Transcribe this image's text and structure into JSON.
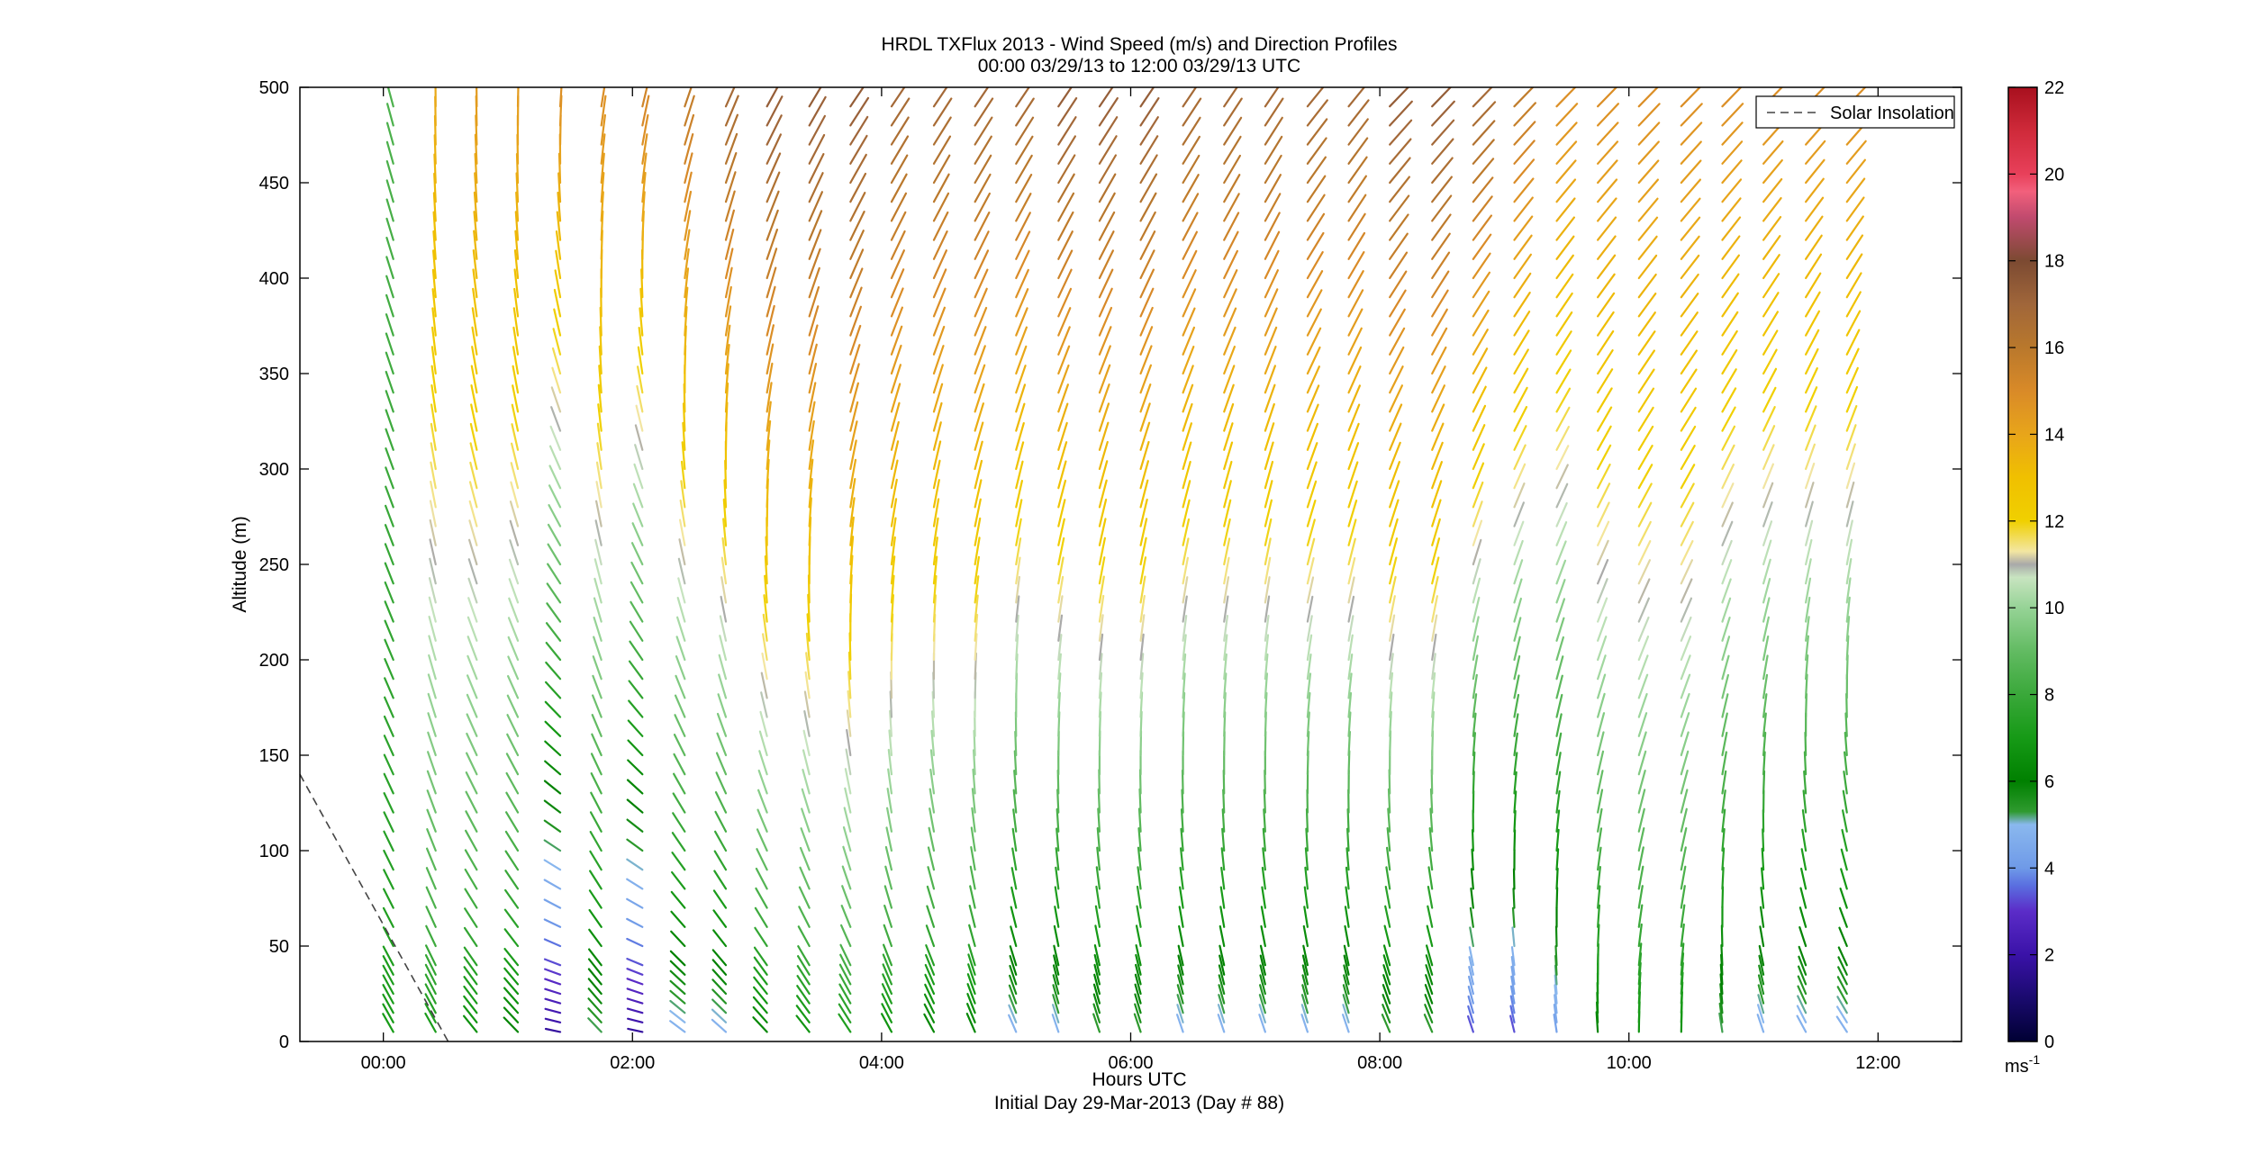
{
  "chart_data": {
    "type": "wind_barb_profile",
    "title": "HRDL TXFlux 2013 - Wind Speed (m/s) and Direction Profiles",
    "subtitle": "00:00 03/29/13 to 12:00 03/29/13  UTC",
    "xlabel": "Hours UTC",
    "xlabel_sub": "Initial Day 29-Mar-2013 (Day # 88)",
    "ylabel": "Altitude (m)",
    "xlim": [
      -0.67,
      12.67
    ],
    "ylim": [
      0,
      500
    ],
    "x_ticks": [
      0,
      2,
      4,
      6,
      8,
      10,
      12
    ],
    "x_tick_labels": [
      "00:00",
      "02:00",
      "04:00",
      "06:00",
      "08:00",
      "10:00",
      "12:00"
    ],
    "y_ticks": [
      0,
      50,
      100,
      150,
      200,
      250,
      300,
      350,
      400,
      450,
      500
    ],
    "y_tick_labels": [
      "0",
      "50",
      "100",
      "150",
      "200",
      "250",
      "300",
      "350",
      "400",
      "450",
      "500"
    ],
    "colorbar": {
      "range": [
        0,
        22
      ],
      "ticks": [
        0,
        2,
        4,
        6,
        8,
        10,
        12,
        14,
        16,
        18,
        20,
        22
      ],
      "tick_labels": [
        "0",
        "2",
        "4",
        "6",
        "8",
        "10",
        "12",
        "14",
        "16",
        "18",
        "20",
        "22"
      ],
      "unit_label": "ms",
      "unit_exponent": "-1"
    },
    "legend": {
      "placement": "top-right",
      "entries": [
        "Solar Insolation"
      ]
    },
    "solar_insolation": {
      "x": [
        -0.67,
        0.52
      ],
      "y": [
        140,
        0
      ]
    },
    "profile_times_hours": [
      0.08,
      0.42,
      0.75,
      1.08,
      1.42,
      1.75,
      2.08,
      2.42,
      2.75,
      3.08,
      3.42,
      3.75,
      4.08,
      4.42,
      4.75,
      5.08,
      5.42,
      5.75,
      6.08,
      6.42,
      6.75,
      7.08,
      7.42,
      7.75,
      8.08,
      8.42,
      8.75,
      9.08,
      9.42,
      9.75,
      10.08,
      10.42,
      10.75,
      11.08,
      11.42,
      11.75
    ],
    "altitude_levels_m": [
      5,
      10,
      15,
      20,
      25,
      30,
      35,
      40,
      50,
      60,
      70,
      80,
      90,
      100,
      110,
      120,
      130,
      140,
      150,
      160,
      170,
      180,
      190,
      200,
      210,
      220,
      230,
      240,
      250,
      260,
      270,
      280,
      290,
      300,
      310,
      320,
      330,
      340,
      350,
      360,
      370,
      380,
      390,
      400,
      410,
      420,
      430,
      440,
      450,
      460,
      470,
      480,
      490
    ],
    "wind_field_model": {
      "speed_ms_at_500m_by_time": [
        8.5,
        14,
        14.5,
        14.5,
        15,
        15,
        15.5,
        16,
        17,
        17.5,
        17.5,
        17.5,
        17,
        17,
        17,
        17,
        17.5,
        17.5,
        17.5,
        17,
        17,
        17,
        17,
        17,
        17.5,
        17.5,
        17,
        16,
        15,
        15,
        15,
        15,
        15,
        15,
        15,
        15
      ],
      "speed_ms_at_surface_by_time": [
        7,
        7,
        6.5,
        6,
        1.5,
        5,
        1.5,
        4.5,
        4.5,
        6,
        6.5,
        7,
        6.5,
        6,
        6,
        4.5,
        4.5,
        5,
        5,
        4.5,
        4.5,
        4.5,
        4.5,
        4.5,
        5,
        5,
        3,
        3,
        4,
        6,
        6.5,
        6.5,
        5,
        4.5,
        4.5,
        4.5
      ],
      "direction_from_deg_at_500m_by_time": [
        165,
        180,
        180,
        182,
        185,
        190,
        195,
        200,
        205,
        210,
        212,
        215,
        215,
        215,
        215,
        215,
        215,
        215,
        215,
        215,
        215,
        215,
        220,
        220,
        225,
        225,
        225,
        225,
        225,
        225,
        225,
        225,
        225,
        225,
        225,
        225
      ],
      "direction_from_deg_at_surface_by_time": [
        150,
        150,
        140,
        135,
        100,
        135,
        100,
        125,
        130,
        135,
        140,
        145,
        150,
        150,
        155,
        155,
        160,
        160,
        160,
        160,
        160,
        160,
        160,
        160,
        155,
        155,
        160,
        165,
        170,
        175,
        180,
        180,
        170,
        160,
        150,
        145
      ]
    }
  }
}
